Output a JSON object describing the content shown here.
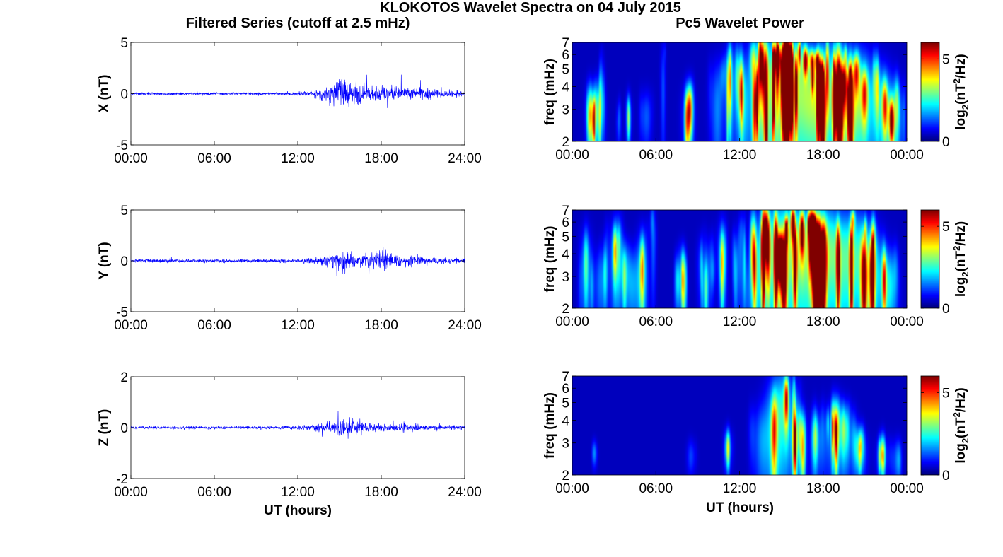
{
  "figure": {
    "title": "KLOKOTOS Wavelet Spectra on 04 July 2015",
    "left_title": "Filtered Series (cutoff at 2.5 mHz)",
    "right_title": "Pc5 Wavelet Power",
    "xlabel": "UT (hours)"
  },
  "colorbar": {
    "label_prefix": "log",
    "label_sub": "2",
    "label_mid": "(nT",
    "label_sup": "2",
    "label_suffix": "/Hz)",
    "ticks": [
      "5",
      "0"
    ],
    "range": [
      0,
      6
    ]
  },
  "colors": {
    "series_line": "#0000ff",
    "background_low": "#00008f"
  },
  "chart_data": [
    {
      "type": "line",
      "ylabel": "X (nT)",
      "ylim": [
        -5,
        5
      ],
      "yticks": [
        "5",
        "0",
        "-5"
      ],
      "xlim": [
        0,
        24
      ],
      "xticklabels": [
        "00:00",
        "06:00",
        "12:00",
        "18:00",
        "24:00"
      ],
      "envelope": {
        "hours": [
          0,
          2,
          4,
          6,
          8,
          10,
          12,
          13,
          14,
          15,
          15.5,
          16,
          17,
          18,
          19,
          20,
          21,
          22,
          23,
          24
        ],
        "amplitude_nT": [
          0.2,
          0.25,
          0.2,
          0.2,
          0.2,
          0.2,
          0.3,
          0.5,
          1.4,
          2.3,
          2.8,
          2.3,
          1.5,
          1.5,
          1.3,
          1.1,
          0.9,
          0.8,
          0.6,
          0.5
        ]
      }
    },
    {
      "type": "line",
      "ylabel": "Y (nT)",
      "ylim": [
        -5,
        5
      ],
      "yticks": [
        "5",
        "0",
        "-5"
      ],
      "xlim": [
        0,
        24
      ],
      "xticklabels": [
        "00:00",
        "06:00",
        "12:00",
        "18:00",
        "24:00"
      ],
      "envelope": {
        "hours": [
          0,
          2,
          4,
          6,
          8,
          10,
          12,
          13,
          14,
          15,
          15.5,
          16,
          17,
          18,
          19,
          20,
          21,
          22,
          23,
          24
        ],
        "amplitude_nT": [
          0.3,
          0.4,
          0.3,
          0.3,
          0.3,
          0.3,
          0.3,
          0.5,
          0.9,
          1.4,
          2.6,
          1.2,
          1.3,
          1.8,
          1.0,
          0.9,
          0.8,
          0.6,
          0.5,
          0.5
        ]
      }
    },
    {
      "type": "line",
      "ylabel": "Z (nT)",
      "ylim": [
        -2,
        2
      ],
      "yticks": [
        "2",
        "0",
        "-2"
      ],
      "xlim": [
        0,
        24
      ],
      "xticklabels": [
        "00:00",
        "06:00",
        "12:00",
        "18:00",
        "24:00"
      ],
      "envelope": {
        "hours": [
          0,
          2,
          4,
          6,
          8,
          10,
          12,
          13,
          14,
          15,
          15.5,
          16,
          17,
          18,
          19,
          20,
          21,
          22,
          23,
          24
        ],
        "amplitude_nT": [
          0.1,
          0.1,
          0.1,
          0.1,
          0.1,
          0.1,
          0.15,
          0.2,
          0.35,
          0.6,
          0.7,
          0.6,
          0.35,
          0.3,
          0.3,
          0.25,
          0.2,
          0.2,
          0.15,
          0.15
        ]
      }
    },
    {
      "type": "heatmap",
      "component": "X",
      "ylabel": "freq (mHz)",
      "ylim_mHz": [
        2,
        7
      ],
      "yticks": [
        "7",
        "6",
        "5",
        "4",
        "3",
        "2"
      ],
      "xlim": [
        0,
        24
      ],
      "xticklabels": [
        "00:00",
        "06:00",
        "12:00",
        "18:00",
        "00:00"
      ],
      "blobs": [
        {
          "t": 1.5,
          "f": 2.6,
          "w": 0.35,
          "h": 0.9,
          "p": 3.5
        },
        {
          "t": 2.1,
          "f": 3.6,
          "w": 0.12,
          "h": 1.3,
          "p": 2.8
        },
        {
          "t": 3.3,
          "f": 2.5,
          "w": 0.12,
          "h": 0.5,
          "p": 2.8
        },
        {
          "t": 4.0,
          "f": 2.7,
          "w": 0.15,
          "h": 0.6,
          "p": 3.0
        },
        {
          "t": 5.3,
          "f": 2.7,
          "w": 0.25,
          "h": 0.7,
          "p": 3.0
        },
        {
          "t": 6.5,
          "f": 3.8,
          "w": 0.12,
          "h": 2.0,
          "p": 2.8
        },
        {
          "t": 8.3,
          "f": 2.7,
          "w": 0.3,
          "h": 0.9,
          "p": 4.0
        },
        {
          "t": 10.4,
          "f": 3.0,
          "w": 0.3,
          "h": 1.6,
          "p": 3.8
        },
        {
          "t": 11.4,
          "f": 4.0,
          "w": 0.3,
          "h": 2.0,
          "p": 4.2
        },
        {
          "t": 12.3,
          "f": 3.2,
          "w": 0.3,
          "h": 1.6,
          "p": 4.5
        },
        {
          "t": 13.5,
          "f": 4.0,
          "w": 0.6,
          "h": 3.0,
          "p": 5.5
        },
        {
          "t": 14.8,
          "f": 3.5,
          "w": 0.9,
          "h": 2.5,
          "p": 6.0
        },
        {
          "t": 16.2,
          "f": 4.2,
          "w": 0.9,
          "h": 2.5,
          "p": 6.0
        },
        {
          "t": 17.5,
          "f": 3.0,
          "w": 0.8,
          "h": 1.5,
          "p": 6.0
        },
        {
          "t": 18.8,
          "f": 4.5,
          "w": 0.9,
          "h": 2.2,
          "p": 5.5
        },
        {
          "t": 19.8,
          "f": 2.8,
          "w": 0.7,
          "h": 1.2,
          "p": 6.0
        },
        {
          "t": 20.8,
          "f": 3.5,
          "w": 0.6,
          "h": 2.0,
          "p": 5.0
        },
        {
          "t": 22.2,
          "f": 3.0,
          "w": 0.6,
          "h": 1.5,
          "p": 5.5
        },
        {
          "t": 23.2,
          "f": 2.6,
          "w": 0.35,
          "h": 1.0,
          "p": 5.5
        }
      ]
    },
    {
      "type": "heatmap",
      "component": "Y",
      "ylabel": "freq (mHz)",
      "ylim_mHz": [
        2,
        7
      ],
      "yticks": [
        "7",
        "6",
        "5",
        "4",
        "3",
        "2"
      ],
      "xlim": [
        0,
        24
      ],
      "xticklabels": [
        "00:00",
        "06:00",
        "12:00",
        "18:00",
        "00:00"
      ],
      "blobs": [
        {
          "t": 1.0,
          "f": 3.2,
          "w": 0.3,
          "h": 1.5,
          "p": 3.2
        },
        {
          "t": 2.0,
          "f": 2.7,
          "w": 0.3,
          "h": 1.0,
          "p": 3.5
        },
        {
          "t": 3.0,
          "f": 3.5,
          "w": 0.3,
          "h": 1.8,
          "p": 3.5
        },
        {
          "t": 4.2,
          "f": 2.7,
          "w": 0.4,
          "h": 1.0,
          "p": 4.5
        },
        {
          "t": 5.0,
          "f": 3.0,
          "w": 0.3,
          "h": 1.5,
          "p": 4.8
        },
        {
          "t": 5.8,
          "f": 4.5,
          "w": 0.12,
          "h": 2.0,
          "p": 3.0
        },
        {
          "t": 7.8,
          "f": 2.8,
          "w": 0.25,
          "h": 0.9,
          "p": 3.0
        },
        {
          "t": 9.6,
          "f": 3.0,
          "w": 0.3,
          "h": 1.2,
          "p": 3.0
        },
        {
          "t": 10.7,
          "f": 4.0,
          "w": 0.2,
          "h": 1.5,
          "p": 3.0
        },
        {
          "t": 12.0,
          "f": 3.5,
          "w": 0.25,
          "h": 1.4,
          "p": 3.0
        },
        {
          "t": 13.2,
          "f": 3.0,
          "w": 0.3,
          "h": 1.5,
          "p": 3.5
        },
        {
          "t": 14.2,
          "f": 3.8,
          "w": 0.8,
          "h": 2.5,
          "p": 5.5
        },
        {
          "t": 15.5,
          "f": 4.5,
          "w": 0.8,
          "h": 2.5,
          "p": 6.0
        },
        {
          "t": 16.8,
          "f": 3.5,
          "w": 0.8,
          "h": 2.0,
          "p": 5.5
        },
        {
          "t": 18.0,
          "f": 4.5,
          "w": 0.8,
          "h": 2.2,
          "p": 6.0
        },
        {
          "t": 19.3,
          "f": 3.5,
          "w": 0.8,
          "h": 2.0,
          "p": 5.5
        },
        {
          "t": 20.5,
          "f": 4.0,
          "w": 0.7,
          "h": 2.0,
          "p": 5.0
        },
        {
          "t": 21.7,
          "f": 3.0,
          "w": 0.6,
          "h": 1.5,
          "p": 5.0
        },
        {
          "t": 22.8,
          "f": 2.6,
          "w": 0.4,
          "h": 1.0,
          "p": 5.5
        }
      ]
    },
    {
      "type": "heatmap",
      "component": "Z",
      "ylabel": "freq (mHz)",
      "ylim_mHz": [
        2,
        7
      ],
      "yticks": [
        "7",
        "6",
        "5",
        "4",
        "3",
        "2"
      ],
      "xlim": [
        0,
        24
      ],
      "xticklabels": [
        "00:00",
        "06:00",
        "12:00",
        "18:00",
        "00:00"
      ],
      "blobs": [
        {
          "t": 1.6,
          "f": 2.6,
          "w": 0.12,
          "h": 0.3,
          "p": 2.5
        },
        {
          "t": 8.5,
          "f": 2.5,
          "w": 0.2,
          "h": 0.4,
          "p": 2.5
        },
        {
          "t": 11.2,
          "f": 2.8,
          "w": 0.2,
          "h": 0.5,
          "p": 3.0
        },
        {
          "t": 13.6,
          "f": 3.0,
          "w": 0.4,
          "h": 1.2,
          "p": 3.5
        },
        {
          "t": 14.5,
          "f": 3.6,
          "w": 0.5,
          "h": 2.0,
          "p": 4.5
        },
        {
          "t": 15.2,
          "f": 4.5,
          "w": 0.5,
          "h": 2.2,
          "p": 5.0
        },
        {
          "t": 16.2,
          "f": 2.8,
          "w": 0.4,
          "h": 1.0,
          "p": 3.5
        },
        {
          "t": 17.8,
          "f": 3.0,
          "w": 0.4,
          "h": 1.0,
          "p": 3.0
        },
        {
          "t": 18.8,
          "f": 3.2,
          "w": 0.4,
          "h": 1.2,
          "p": 3.2
        },
        {
          "t": 19.6,
          "f": 3.0,
          "w": 0.4,
          "h": 1.0,
          "p": 3.8
        },
        {
          "t": 20.8,
          "f": 2.6,
          "w": 0.3,
          "h": 0.6,
          "p": 2.8
        },
        {
          "t": 22.3,
          "f": 2.5,
          "w": 0.3,
          "h": 0.5,
          "p": 2.5
        },
        {
          "t": 23.3,
          "f": 2.4,
          "w": 0.2,
          "h": 0.5,
          "p": 2.8
        }
      ]
    }
  ]
}
